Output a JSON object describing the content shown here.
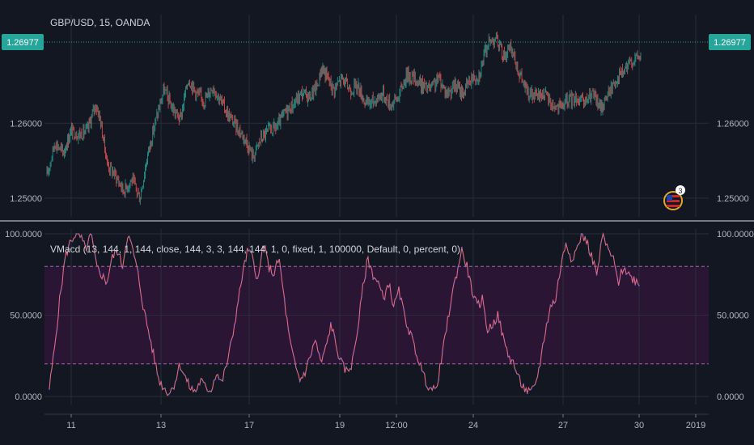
{
  "colors": {
    "background": "#131722",
    "grid": "#2a2e39",
    "axis_text": "#b2b5be",
    "candle_up": "#26a69a",
    "candle_down": "#ef5350",
    "price_line": "#26a69a",
    "price_badge": "#26a69a",
    "band_fill": "#2a1535",
    "band_line": "#9c6aa8",
    "oscillator_line": "#e06b86",
    "oscillator_dots": "#5b6bd6"
  },
  "event_flag": {
    "country": "US",
    "count": "3"
  },
  "chart_data": [
    {
      "type": "candlestick",
      "title": "GBP/USD, 15, OANDA",
      "symbol": "GBP/USD",
      "interval": "15",
      "source": "OANDA",
      "last_price": "1.26977",
      "ylim": [
        1.2475,
        1.2745
      ],
      "y_ticks": [
        "1.26000",
        "1.25000"
      ],
      "y_tick_values": [
        1.26,
        1.25
      ],
      "x_ticks": [
        "11",
        "13",
        "17",
        "19",
        "12:00",
        "24",
        "27",
        "30",
        "2019"
      ],
      "grid": true,
      "price_path": [
        [
          0,
          1.253
        ],
        [
          2,
          1.2575
        ],
        [
          4,
          1.256
        ],
        [
          6,
          1.259
        ],
        [
          8,
          1.2585
        ],
        [
          10,
          1.259
        ],
        [
          12,
          1.2625
        ],
        [
          13,
          1.261
        ],
        [
          15,
          1.2545
        ],
        [
          17,
          1.253
        ],
        [
          19,
          1.251
        ],
        [
          21,
          1.2525
        ],
        [
          23,
          1.25
        ],
        [
          25,
          1.256
        ],
        [
          27,
          1.2605
        ],
        [
          29,
          1.2645
        ],
        [
          31,
          1.262
        ],
        [
          33,
          1.2605
        ],
        [
          35,
          1.266
        ],
        [
          37,
          1.264
        ],
        [
          39,
          1.263
        ],
        [
          41,
          1.265
        ],
        [
          43,
          1.263
        ],
        [
          45,
          1.261
        ],
        [
          47,
          1.2595
        ],
        [
          49,
          1.258
        ],
        [
          51,
          1.2555
        ],
        [
          53,
          1.258
        ],
        [
          55,
          1.259
        ],
        [
          57,
          1.2595
        ],
        [
          59,
          1.2615
        ],
        [
          61,
          1.2625
        ],
        [
          63,
          1.264
        ],
        [
          65,
          1.2635
        ],
        [
          67,
          1.265
        ],
        [
          68,
          1.2675
        ],
        [
          69,
          1.2665
        ],
        [
          71,
          1.2645
        ],
        [
          73,
          1.266
        ],
        [
          75,
          1.2645
        ],
        [
          77,
          1.265
        ],
        [
          79,
          1.2625
        ],
        [
          81,
          1.263
        ],
        [
          83,
          1.264
        ],
        [
          85,
          1.2625
        ],
        [
          87,
          1.2635
        ],
        [
          89,
          1.2665
        ],
        [
          91,
          1.266
        ],
        [
          93,
          1.265
        ],
        [
          95,
          1.2645
        ],
        [
          97,
          1.266
        ],
        [
          99,
          1.264
        ],
        [
          101,
          1.265
        ],
        [
          103,
          1.264
        ],
        [
          105,
          1.266
        ],
        [
          107,
          1.2665
        ],
        [
          109,
          1.2705
        ],
        [
          111,
          1.2715
        ],
        [
          113,
          1.269
        ],
        [
          115,
          1.27
        ],
        [
          117,
          1.2665
        ],
        [
          119,
          1.264
        ],
        [
          121,
          1.2635
        ],
        [
          123,
          1.264
        ],
        [
          125,
          1.2625
        ],
        [
          127,
          1.262
        ],
        [
          129,
          1.263
        ],
        [
          131,
          1.2635
        ],
        [
          133,
          1.2625
        ],
        [
          135,
          1.264
        ],
        [
          137,
          1.262
        ],
        [
          139,
          1.264
        ],
        [
          141,
          1.266
        ],
        [
          143,
          1.267
        ],
        [
          145,
          1.2685
        ],
        [
          147,
          1.269
        ]
      ]
    },
    {
      "type": "line",
      "title": "VMacd (13, 144, 1, 144, close, 144, 3, 3, 144, 144, 1, 0, fixed, 1, 100000, Default, 0, percent, 0)",
      "ylim": [
        -5,
        103
      ],
      "y_ticks": [
        "100.0000",
        "50.0000",
        "0.0000"
      ],
      "y_tick_values": [
        100,
        50,
        0
      ],
      "bands": [
        20,
        80
      ],
      "grid": true,
      "series": [
        {
          "points": [
            [
              0,
              5
            ],
            [
              1,
              30
            ],
            [
              2,
              60
            ],
            [
              3,
              85
            ],
            [
              4,
              95
            ],
            [
              5,
              100
            ],
            [
              6,
              98
            ],
            [
              7,
              90
            ],
            [
              8,
              100
            ],
            [
              9,
              80
            ],
            [
              10,
              75
            ],
            [
              11,
              70
            ],
            [
              12,
              85
            ],
            [
              13,
              90
            ],
            [
              14,
              80
            ],
            [
              15,
              100
            ],
            [
              16,
              90
            ],
            [
              17,
              75
            ],
            [
              18,
              55
            ],
            [
              19,
              40
            ],
            [
              20,
              25
            ],
            [
              21,
              10
            ],
            [
              22,
              5
            ],
            [
              23,
              2
            ],
            [
              24,
              8
            ],
            [
              25,
              20
            ],
            [
              26,
              12
            ],
            [
              27,
              5
            ],
            [
              28,
              3
            ],
            [
              29,
              10
            ],
            [
              30,
              5
            ],
            [
              31,
              4
            ],
            [
              32,
              15
            ],
            [
              33,
              8
            ],
            [
              34,
              20
            ],
            [
              35,
              35
            ],
            [
              36,
              55
            ],
            [
              37,
              75
            ],
            [
              38,
              90
            ],
            [
              39,
              85
            ],
            [
              40,
              70
            ],
            [
              41,
              95
            ],
            [
              42,
              80
            ],
            [
              43,
              75
            ],
            [
              44,
              85
            ],
            [
              45,
              60
            ],
            [
              46,
              35
            ],
            [
              47,
              20
            ],
            [
              48,
              10
            ],
            [
              49,
              15
            ],
            [
              50,
              25
            ],
            [
              51,
              35
            ],
            [
              52,
              20
            ],
            [
              53,
              30
            ],
            [
              54,
              45
            ],
            [
              55,
              30
            ],
            [
              56,
              20
            ],
            [
              57,
              15
            ],
            [
              58,
              20
            ],
            [
              59,
              40
            ],
            [
              60,
              65
            ],
            [
              61,
              85
            ],
            [
              62,
              75
            ],
            [
              63,
              70
            ],
            [
              64,
              60
            ],
            [
              65,
              70
            ],
            [
              66,
              55
            ],
            [
              67,
              65
            ],
            [
              68,
              50
            ],
            [
              69,
              40
            ],
            [
              70,
              30
            ],
            [
              71,
              20
            ],
            [
              72,
              10
            ],
            [
              73,
              5
            ],
            [
              74,
              3
            ],
            [
              75,
              20
            ],
            [
              76,
              40
            ],
            [
              77,
              60
            ],
            [
              78,
              75
            ],
            [
              79,
              90
            ],
            [
              80,
              80
            ],
            [
              81,
              65
            ],
            [
              82,
              55
            ],
            [
              83,
              60
            ],
            [
              84,
              40
            ],
            [
              85,
              45
            ],
            [
              86,
              50
            ],
            [
              87,
              35
            ],
            [
              88,
              25
            ],
            [
              89,
              20
            ],
            [
              90,
              10
            ],
            [
              91,
              5
            ],
            [
              92,
              2
            ],
            [
              93,
              5
            ],
            [
              94,
              20
            ],
            [
              95,
              40
            ],
            [
              96,
              55
            ],
            [
              97,
              60
            ],
            [
              98,
              80
            ],
            [
              99,
              95
            ],
            [
              100,
              85
            ],
            [
              101,
              90
            ],
            [
              102,
              100
            ],
            [
              103,
              95
            ],
            [
              104,
              85
            ],
            [
              105,
              75
            ],
            [
              106,
              100
            ],
            [
              107,
              90
            ],
            [
              108,
              85
            ],
            [
              109,
              70
            ],
            [
              110,
              80
            ],
            [
              111,
              75
            ],
            [
              112,
              72
            ],
            [
              113,
              70
            ]
          ]
        }
      ]
    }
  ]
}
